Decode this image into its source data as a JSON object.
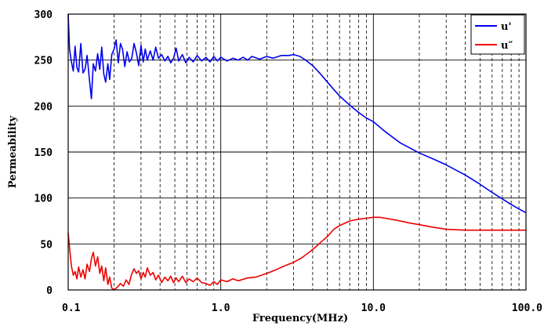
{
  "chart_data": {
    "type": "line",
    "xlabel": "Frequency(MHz)",
    "ylabel": "Permeability",
    "xscale": "log",
    "xlim": [
      0.1,
      100
    ],
    "ylim": [
      0,
      300
    ],
    "xticks": [
      {
        "value": 0.1,
        "label": "0.1"
      },
      {
        "value": 1,
        "label": "1.0"
      },
      {
        "value": 10,
        "label": "10.0"
      },
      {
        "value": 100,
        "label": "100.0"
      }
    ],
    "yticks": [
      {
        "value": 0,
        "label": "0"
      },
      {
        "value": 50,
        "label": "50"
      },
      {
        "value": 100,
        "label": "100"
      },
      {
        "value": 150,
        "label": "150"
      },
      {
        "value": 200,
        "label": "200"
      },
      {
        "value": 250,
        "label": "250"
      },
      {
        "value": 300,
        "label": "300"
      }
    ],
    "grid": true,
    "legend_position": "top-right",
    "series": [
      {
        "name": "u'",
        "color": "#0000ee",
        "points": [
          [
            0.1,
            300
          ],
          [
            0.102,
            262
          ],
          [
            0.105,
            248
          ],
          [
            0.108,
            238
          ],
          [
            0.111,
            265
          ],
          [
            0.114,
            242
          ],
          [
            0.117,
            237
          ],
          [
            0.121,
            268
          ],
          [
            0.125,
            236
          ],
          [
            0.129,
            240
          ],
          [
            0.133,
            255
          ],
          [
            0.138,
            228
          ],
          [
            0.142,
            208
          ],
          [
            0.146,
            246
          ],
          [
            0.151,
            238
          ],
          [
            0.156,
            257
          ],
          [
            0.161,
            240
          ],
          [
            0.166,
            264
          ],
          [
            0.171,
            235
          ],
          [
            0.176,
            226
          ],
          [
            0.182,
            246
          ],
          [
            0.187,
            229
          ],
          [
            0.193,
            256
          ],
          [
            0.2,
            262
          ],
          [
            0.206,
            272
          ],
          [
            0.213,
            247
          ],
          [
            0.22,
            268
          ],
          [
            0.227,
            262
          ],
          [
            0.235,
            243
          ],
          [
            0.243,
            259
          ],
          [
            0.252,
            248
          ],
          [
            0.261,
            252
          ],
          [
            0.27,
            268
          ],
          [
            0.28,
            258
          ],
          [
            0.29,
            244
          ],
          [
            0.3,
            266
          ],
          [
            0.31,
            248
          ],
          [
            0.32,
            262
          ],
          [
            0.33,
            250
          ],
          [
            0.345,
            260
          ],
          [
            0.36,
            250
          ],
          [
            0.375,
            264
          ],
          [
            0.39,
            252
          ],
          [
            0.41,
            256
          ],
          [
            0.43,
            249
          ],
          [
            0.45,
            254
          ],
          [
            0.47,
            247
          ],
          [
            0.49,
            252
          ],
          [
            0.51,
            263
          ],
          [
            0.53,
            249
          ],
          [
            0.56,
            256
          ],
          [
            0.59,
            247
          ],
          [
            0.62,
            253
          ],
          [
            0.66,
            248
          ],
          [
            0.7,
            255
          ],
          [
            0.75,
            249
          ],
          [
            0.8,
            253
          ],
          [
            0.85,
            248
          ],
          [
            0.9,
            254
          ],
          [
            0.95,
            249
          ],
          [
            1.0,
            253
          ],
          [
            1.1,
            249
          ],
          [
            1.2,
            252
          ],
          [
            1.3,
            250
          ],
          [
            1.4,
            253
          ],
          [
            1.5,
            250
          ],
          [
            1.6,
            254
          ],
          [
            1.8,
            251
          ],
          [
            2.0,
            254
          ],
          [
            2.2,
            252
          ],
          [
            2.5,
            255
          ],
          [
            2.8,
            255
          ],
          [
            3.0,
            256
          ],
          [
            3.3,
            254
          ],
          [
            3.6,
            250
          ],
          [
            4.0,
            244
          ],
          [
            4.5,
            235
          ],
          [
            5.0,
            226
          ],
          [
            5.5,
            218
          ],
          [
            6.0,
            211
          ],
          [
            7.0,
            201
          ],
          [
            8.0,
            193
          ],
          [
            9.0,
            187
          ],
          [
            10.0,
            183
          ],
          [
            12.0,
            172
          ],
          [
            15.0,
            160
          ],
          [
            20.0,
            149
          ],
          [
            25.0,
            142
          ],
          [
            30.0,
            136
          ],
          [
            40.0,
            125
          ],
          [
            50.0,
            115
          ],
          [
            60.0,
            106
          ],
          [
            70.0,
            99
          ],
          [
            80.0,
            93
          ],
          [
            90.0,
            88
          ],
          [
            100.0,
            84
          ]
        ]
      },
      {
        "name": "u″",
        "color": "#ee0000",
        "points": [
          [
            0.1,
            62
          ],
          [
            0.102,
            46
          ],
          [
            0.105,
            26
          ],
          [
            0.108,
            16
          ],
          [
            0.111,
            20
          ],
          [
            0.114,
            12
          ],
          [
            0.117,
            25
          ],
          [
            0.121,
            14
          ],
          [
            0.125,
            22
          ],
          [
            0.129,
            12
          ],
          [
            0.133,
            28
          ],
          [
            0.138,
            20
          ],
          [
            0.142,
            34
          ],
          [
            0.146,
            41
          ],
          [
            0.151,
            26
          ],
          [
            0.156,
            36
          ],
          [
            0.161,
            18
          ],
          [
            0.166,
            26
          ],
          [
            0.171,
            10
          ],
          [
            0.176,
            24
          ],
          [
            0.182,
            6
          ],
          [
            0.187,
            14
          ],
          [
            0.193,
            2
          ],
          [
            0.2,
            0
          ],
          [
            0.21,
            3
          ],
          [
            0.22,
            7
          ],
          [
            0.23,
            4
          ],
          [
            0.24,
            11
          ],
          [
            0.25,
            6
          ],
          [
            0.26,
            17
          ],
          [
            0.27,
            23
          ],
          [
            0.28,
            18
          ],
          [
            0.29,
            21
          ],
          [
            0.3,
            12
          ],
          [
            0.31,
            19
          ],
          [
            0.32,
            14
          ],
          [
            0.33,
            24
          ],
          [
            0.345,
            16
          ],
          [
            0.36,
            19
          ],
          [
            0.375,
            11
          ],
          [
            0.39,
            16
          ],
          [
            0.41,
            8
          ],
          [
            0.43,
            14
          ],
          [
            0.45,
            10
          ],
          [
            0.47,
            15
          ],
          [
            0.49,
            8
          ],
          [
            0.51,
            13
          ],
          [
            0.53,
            9
          ],
          [
            0.56,
            15
          ],
          [
            0.59,
            8
          ],
          [
            0.62,
            12
          ],
          [
            0.66,
            9
          ],
          [
            0.7,
            13
          ],
          [
            0.75,
            8
          ],
          [
            0.8,
            7
          ],
          [
            0.85,
            5
          ],
          [
            0.9,
            9
          ],
          [
            0.95,
            6
          ],
          [
            1.0,
            11
          ],
          [
            1.1,
            9
          ],
          [
            1.2,
            12
          ],
          [
            1.3,
            10
          ],
          [
            1.5,
            13
          ],
          [
            1.7,
            14
          ],
          [
            2.0,
            18
          ],
          [
            2.3,
            22
          ],
          [
            2.6,
            26
          ],
          [
            3.0,
            30
          ],
          [
            3.4,
            35
          ],
          [
            3.8,
            41
          ],
          [
            4.2,
            47
          ],
          [
            4.6,
            53
          ],
          [
            5.0,
            58
          ],
          [
            5.5,
            66
          ],
          [
            6.0,
            70
          ],
          [
            7.0,
            75
          ],
          [
            8.0,
            77
          ],
          [
            9.0,
            78
          ],
          [
            10.0,
            79
          ],
          [
            11.0,
            79
          ],
          [
            12.0,
            78
          ],
          [
            14.0,
            76
          ],
          [
            17.0,
            73
          ],
          [
            20.0,
            71
          ],
          [
            25.0,
            68
          ],
          [
            30.0,
            66
          ],
          [
            40.0,
            65
          ],
          [
            50.0,
            65
          ],
          [
            60.0,
            65
          ],
          [
            70.0,
            65
          ],
          [
            80.0,
            65
          ],
          [
            90.0,
            65
          ],
          [
            100.0,
            65
          ]
        ]
      }
    ]
  }
}
